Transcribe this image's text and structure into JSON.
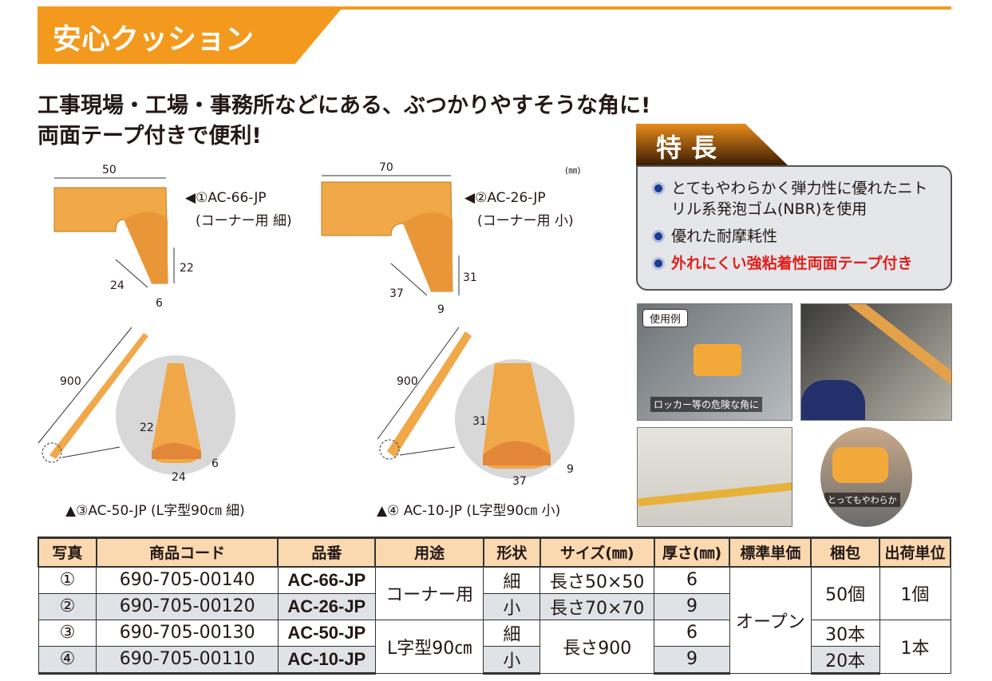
{
  "title": "安心クッション",
  "headline": [
    "工事現場・工場・事務所などにある、ぶつかりやすそうな角に!",
    "両面テープ付きで便利!"
  ],
  "unit": "(㎜)",
  "products": [
    {
      "label": "◀①AC-66-JP",
      "sub": "(コーナー用 細)",
      "dims": [
        "50",
        "22",
        "24",
        "6"
      ]
    },
    {
      "label": "◀②AC-26-JP",
      "sub": "(コーナー用 小)",
      "dims": [
        "70",
        "31",
        "37",
        "9"
      ]
    },
    {
      "label": "▲③AC-50-JP (L字型90㎝ 細)",
      "dims": [
        "900",
        "22",
        "24",
        "6"
      ]
    },
    {
      "label": "▲④ AC-10-JP (L字型90㎝ 小)",
      "dims": [
        "900",
        "31",
        "37",
        "9"
      ]
    }
  ],
  "features": {
    "title": "特長",
    "items": [
      "とてもやわらかく弾力性に優れたニトリル系発泡ゴム(NBR)を使用",
      "優れた耐摩耗性",
      "外れにくい強粘着性両面テープ付き"
    ]
  },
  "photos": {
    "example_label": "使用例",
    "caption1": "ロッカー等の危険な角に",
    "caption4": "とってもやわらか"
  },
  "colors": {
    "accent": "#f39a1e",
    "cushion": "#f0a848",
    "highlight": "#e0201b",
    "header_bg": "#fbd9b0"
  },
  "table": {
    "headers": [
      "写真",
      "商品コード",
      "品番",
      "用途",
      "形状",
      "サイズ(㎜)",
      "厚さ(㎜)",
      "標準単価",
      "梱包",
      "出荷単位"
    ],
    "rows": [
      {
        "no": "①",
        "code": "690-705-00140",
        "part": "AC-66-JP",
        "shape": "細",
        "size": "長さ50×50",
        "thick": "6"
      },
      {
        "no": "②",
        "code": "690-705-00120",
        "part": "AC-26-JP",
        "shape": "小",
        "size": "長さ70×70",
        "thick": "9"
      },
      {
        "no": "③",
        "code": "690-705-00130",
        "part": "AC-50-JP",
        "shape": "細",
        "thick": "6",
        "pack": "30本"
      },
      {
        "no": "④",
        "code": "690-705-00110",
        "part": "AC-10-JP",
        "shape": "小",
        "thick": "9",
        "pack": "20本"
      }
    ],
    "use_corner": "コーナー用",
    "use_l": "L字型90㎝",
    "size_l": "長さ900",
    "price": "オープン",
    "pack_corner": "50個",
    "unit_corner": "1個",
    "unit_l": "1本"
  }
}
